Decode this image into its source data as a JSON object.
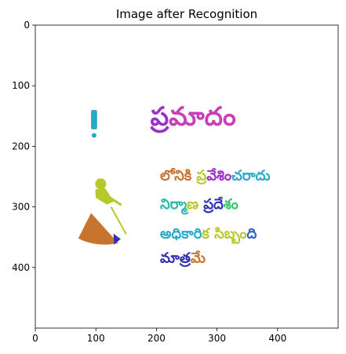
{
  "chart_data": {
    "type": "image",
    "title": "Image after Recognition",
    "xlabel": "",
    "ylabel": "",
    "xlim": [
      0,
      500
    ],
    "ylim": [
      500,
      0
    ],
    "xticks": [
      0,
      100,
      200,
      300,
      400
    ],
    "yticks": [
      0,
      100,
      200,
      300,
      400
    ],
    "grid": false,
    "warning_sign": {
      "colors": [
        "#29a9c9",
        "#b7c92a",
        "#c8742c",
        "#2f2fb8"
      ]
    },
    "text_lines": [
      {
        "text": "ప్రమాదం",
        "colors": [
          "#9a2fc9",
          "#c83fb8",
          "#c83fb8",
          "#6cc62a",
          "#29a9c9"
        ]
      },
      {
        "text": "లోనికి ప్రవేశించరాదు",
        "colors": [
          "#c8742c",
          "#b7c92a",
          "#9a2fc9",
          "#29a9c9"
        ]
      },
      {
        "text": "నిర్మాణ ప్రదేశం",
        "colors": [
          "#29b9a9",
          "#b7c92a",
          "#2f2fb8",
          "#29c96a"
        ]
      },
      {
        "text": "అధికారిక సిబ్బంది",
        "colors": [
          "#29a9c9",
          "#b7c92a",
          "#2f5fc9"
        ]
      },
      {
        "text": "మాత్రమే",
        "colors": [
          "#2f2fb8",
          "#c8742c"
        ]
      }
    ]
  }
}
